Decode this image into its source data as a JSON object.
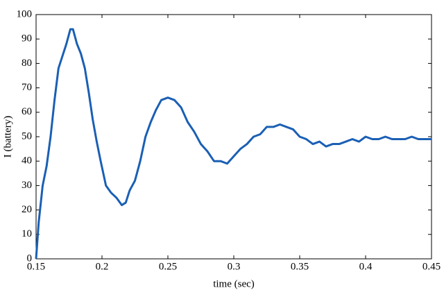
{
  "chart_data": {
    "type": "line",
    "xlabel": "time (sec)",
    "ylabel": "I (battery)",
    "xlim": [
      0.15,
      0.45
    ],
    "xticks": [
      0.15,
      0.2,
      0.25,
      0.3,
      0.35,
      0.4,
      0.45
    ],
    "ylim": [
      0,
      100
    ],
    "yticks": [
      0,
      10,
      20,
      30,
      40,
      50,
      60,
      70,
      80,
      90,
      100
    ],
    "grid": false,
    "series": [
      {
        "color": "#1a5fb4",
        "x": [
          0.15,
          0.152,
          0.155,
          0.158,
          0.161,
          0.164,
          0.167,
          0.17,
          0.173,
          0.176,
          0.178,
          0.181,
          0.184,
          0.187,
          0.19,
          0.193,
          0.196,
          0.199,
          0.203,
          0.207,
          0.211,
          0.215,
          0.218,
          0.221,
          0.225,
          0.229,
          0.233,
          0.237,
          0.241,
          0.245,
          0.25,
          0.255,
          0.26,
          0.265,
          0.27,
          0.275,
          0.28,
          0.285,
          0.29,
          0.295,
          0.3,
          0.305,
          0.31,
          0.315,
          0.32,
          0.325,
          0.33,
          0.335,
          0.34,
          0.345,
          0.35,
          0.355,
          0.36,
          0.365,
          0.37,
          0.375,
          0.38,
          0.385,
          0.39,
          0.395,
          0.4,
          0.405,
          0.41,
          0.415,
          0.42,
          0.425,
          0.43,
          0.435,
          0.44,
          0.445,
          0.45
        ],
        "values": [
          0,
          15,
          30,
          38,
          50,
          65,
          78,
          83,
          88,
          94,
          94,
          88,
          84,
          78,
          68,
          57,
          48,
          40,
          30,
          27,
          25,
          22,
          23,
          28,
          32,
          40,
          50,
          56,
          61,
          65,
          66,
          65,
          62,
          56,
          52,
          47,
          44,
          40,
          40,
          39,
          42,
          45,
          47,
          50,
          51,
          54,
          54,
          55,
          54,
          53,
          50,
          49,
          47,
          48,
          46,
          47,
          47,
          48,
          49,
          48,
          50,
          49,
          49,
          50,
          49,
          49,
          49,
          50,
          49,
          49,
          49
        ]
      }
    ]
  }
}
